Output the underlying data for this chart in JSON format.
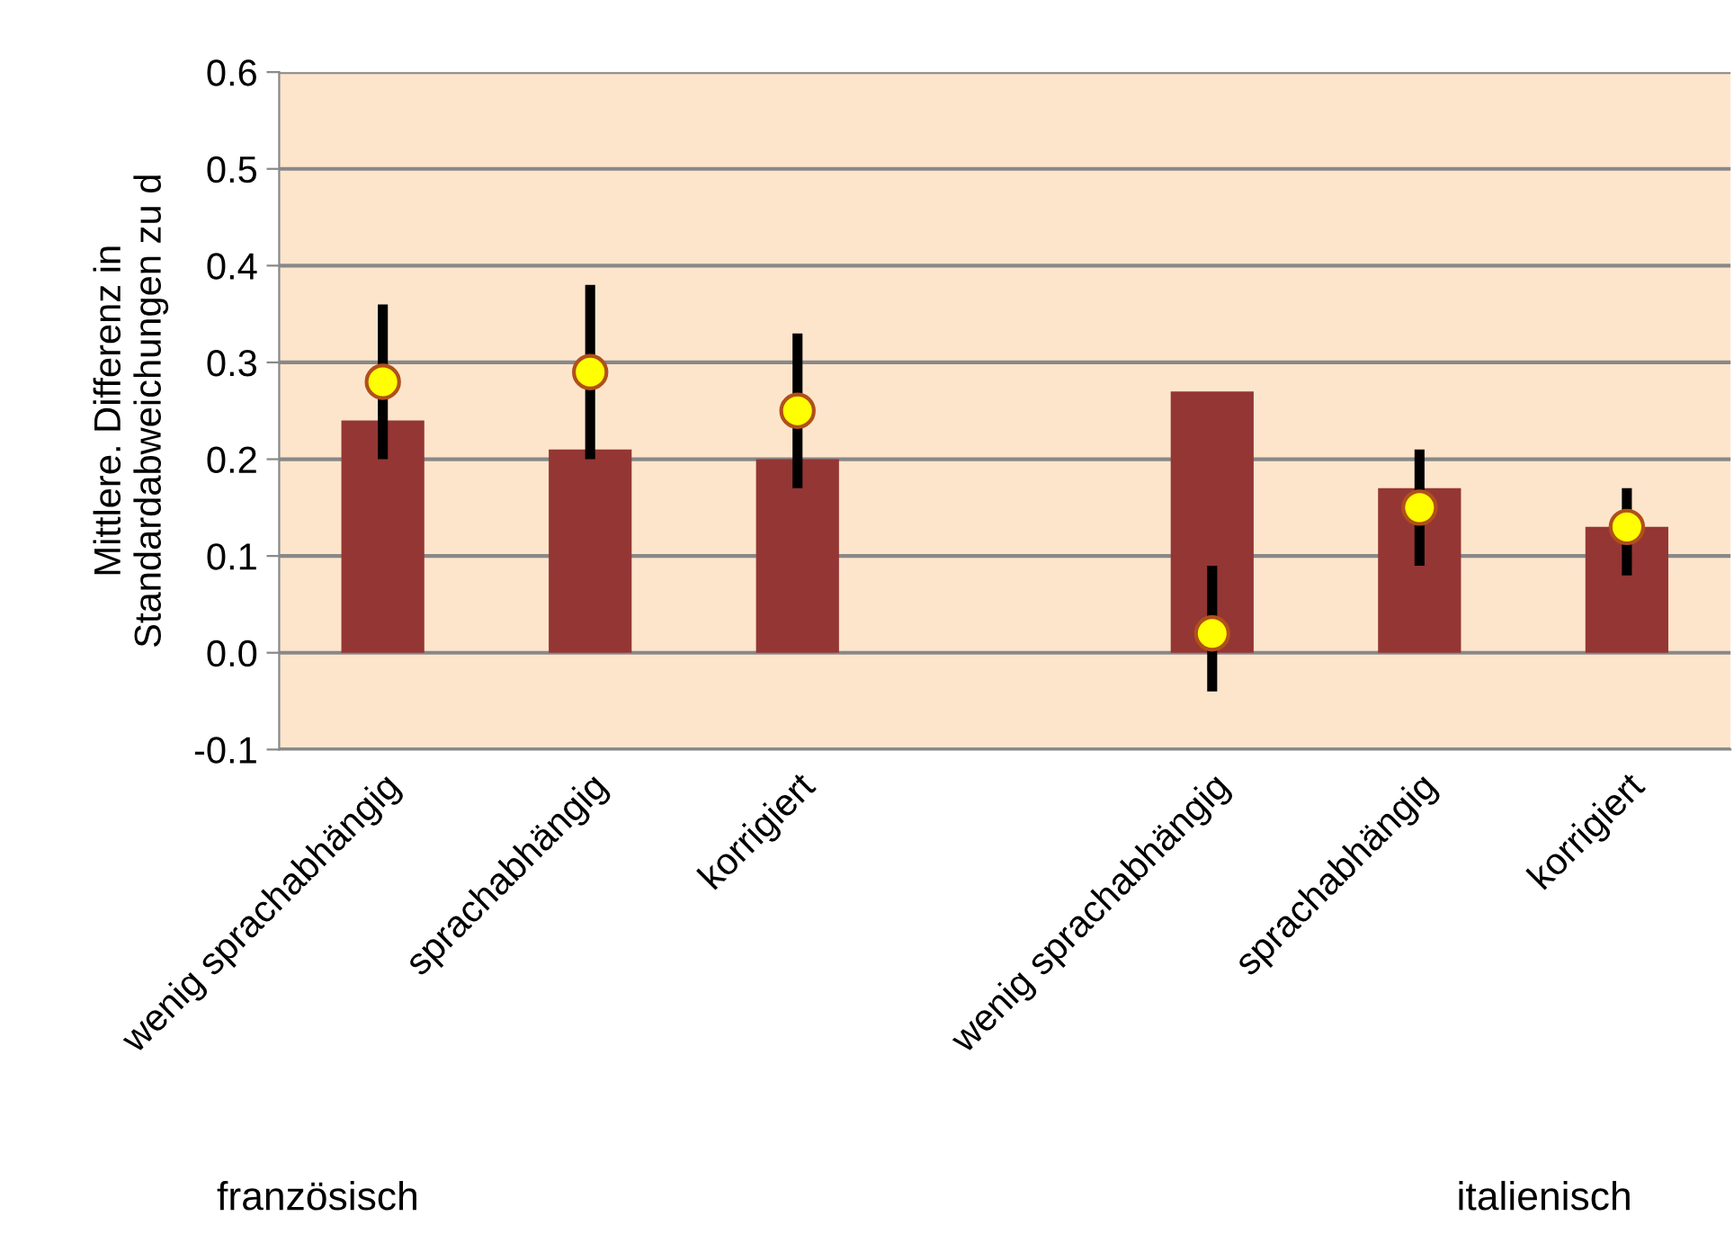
{
  "chart_data": {
    "type": "bar",
    "ylabel": "Mittlere. Differenz in\nStandardabweichungen zu d",
    "categories": [
      "wenig sprachabhängig",
      "sprachabhängig",
      "korrigiert",
      null,
      "wenig sprachabhängig",
      "sprachabhängig",
      "korrigiert"
    ],
    "series": [
      {
        "color": "#943634",
        "values": [
          0.24,
          0.21,
          0.2,
          null,
          0.27,
          0.17,
          0.13
        ]
      },
      {
        "type": "scatter",
        "color": "#ffff00",
        "marker": "circle",
        "values": [
          0.28,
          0.29,
          0.25,
          null,
          0.02,
          0.15,
          0.13
        ],
        "errors": [
          [
            0.2,
            0.36
          ],
          [
            0.2,
            0.38
          ],
          [
            0.17,
            0.33
          ],
          null,
          [
            -0.04,
            0.09
          ],
          [
            0.09,
            0.21
          ],
          [
            0.08,
            0.17
          ]
        ]
      }
    ],
    "ylim": [
      -0.1,
      0.6
    ],
    "yticks": [
      {
        "value": -0.1,
        "label": "-0.1"
      },
      {
        "value": 0,
        "label": "0.0"
      },
      {
        "value": 0.1,
        "label": "0.1"
      },
      {
        "value": 0.2,
        "label": "0.2"
      },
      {
        "value": 0.3,
        "label": "0.3"
      },
      {
        "value": 0.4,
        "label": "0.4"
      },
      {
        "value": 0.5,
        "label": "0.5"
      },
      {
        "value": 0.6,
        "label": "0.6"
      }
    ],
    "grid": "y",
    "annotations": [
      "französisch",
      "italienisch"
    ]
  }
}
